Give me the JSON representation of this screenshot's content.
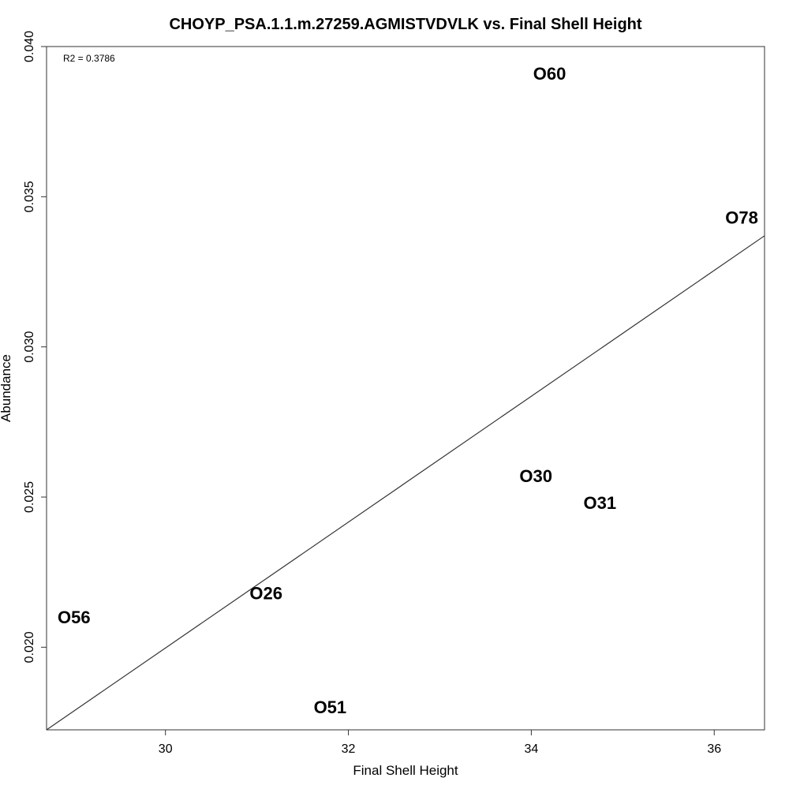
{
  "chart_data": {
    "type": "scatter",
    "title": "CHOYP_PSA.1.1.m.27259.AGMISTVDVLK vs. Final Shell Height",
    "xlabel": "Final Shell Height",
    "ylabel": "Abundance",
    "xlim": [
      28.7,
      36.55
    ],
    "ylim": [
      0.01725,
      0.04
    ],
    "x_ticks": [
      30,
      32,
      34,
      36
    ],
    "x_tick_labels": [
      "30",
      "32",
      "34",
      "36"
    ],
    "y_ticks": [
      0.02,
      0.025,
      0.03,
      0.035,
      0.04
    ],
    "y_tick_labels": [
      "0.020",
      "0.025",
      "0.030",
      "0.035",
      "0.040"
    ],
    "grid": false,
    "annotation": "R2 = 0.3786",
    "points": [
      {
        "label": "O60",
        "x": 34.2,
        "y": 0.0391
      },
      {
        "label": "O78",
        "x": 36.3,
        "y": 0.0343
      },
      {
        "label": "O30",
        "x": 34.05,
        "y": 0.0257
      },
      {
        "label": "O31",
        "x": 34.75,
        "y": 0.0248
      },
      {
        "label": "O26",
        "x": 31.1,
        "y": 0.0218
      },
      {
        "label": "O56",
        "x": 29.0,
        "y": 0.021
      },
      {
        "label": "O51",
        "x": 31.8,
        "y": 0.018
      }
    ],
    "fit_line": {
      "x": [
        28.7,
        36.55
      ],
      "y": [
        0.01725,
        0.0337
      ]
    }
  }
}
